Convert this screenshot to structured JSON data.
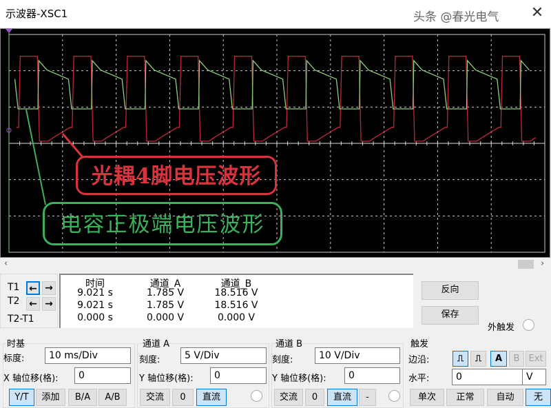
{
  "window": {
    "title": "示波器-XSC1",
    "close_icon": "close-icon"
  },
  "annotations": {
    "red_label": "光耦4脚电压波形",
    "green_label": "电容正极端电压波形",
    "red_color": "#d8343c",
    "green_color": "#3cb05a"
  },
  "chart_data": {
    "type": "line",
    "grid": true,
    "x_divisions": 10,
    "y_divisions": 6,
    "timebase": "10 ms/Div",
    "series": [
      {
        "channel": "A",
        "color": "#c0283a",
        "volts_per_div": 5,
        "period_ms": 10,
        "period_shape": [
          [
            0,
            2.2
          ],
          [
            0.3,
            12
          ],
          [
            3.5,
            12
          ],
          [
            3.9,
            0.3
          ],
          [
            5.5,
            0.3
          ],
          [
            6.5,
            0.8
          ],
          [
            9.6,
            2.2
          ],
          [
            10,
            2.2
          ]
        ]
      },
      {
        "channel": "B",
        "color": "#8fd07a",
        "volts_per_div": 10,
        "period_ms": 10,
        "period_shape": [
          [
            0,
            9.5
          ],
          [
            3.6,
            9.5
          ],
          [
            3.75,
            22.8
          ],
          [
            5.3,
            20.2
          ],
          [
            9.3,
            17.7
          ],
          [
            9.9,
            9.5
          ],
          [
            10,
            9.5
          ]
        ]
      }
    ]
  },
  "cursors": {
    "t1": "T1",
    "t2": "T2",
    "t2_t1": "T2-T1",
    "left_arrow": "arrow-left-icon",
    "right_arrow": "arrow-right-icon"
  },
  "readout": {
    "headers": [
      "时间",
      "通道_A",
      "通道_B"
    ],
    "rows": [
      [
        "9.021 s",
        "1.785 V",
        "18.516 V"
      ],
      [
        "9.021 s",
        "1.785 V",
        "18.516 V"
      ],
      [
        "0.000 s",
        "0.000 V",
        "0.000 V"
      ]
    ]
  },
  "actions": {
    "reverse": "反向",
    "save": "保存",
    "ext_trigger": "外触发"
  },
  "timebase": {
    "title": "时基",
    "scale_label": "标度:",
    "scale": "10 ms/Div",
    "xpos_label": "X 轴位移(格):",
    "xpos": "0",
    "modes": [
      "Y/T",
      "添加",
      "B/A",
      "A/B"
    ]
  },
  "channel_a": {
    "title": "通道 A",
    "scale_label": "刻度:",
    "scale": "5  V/Div",
    "ypos_label": "Y 轴位移(格):",
    "ypos": "0",
    "coupling": [
      "交流",
      "0",
      "直流"
    ]
  },
  "channel_b": {
    "title": "通道 B",
    "scale_label": "刻度:",
    "scale": "10  V/Div",
    "ypos_label": "Y 轴位移(格):",
    "ypos": "0",
    "coupling": [
      "交流",
      "0",
      "直流",
      "-"
    ]
  },
  "trigger": {
    "title": "触发",
    "edge_label": "边沿:",
    "sources": [
      "A",
      "B",
      "Ext"
    ],
    "level_label": "水平:",
    "level": "0",
    "level_unit": "V",
    "modes": [
      "单次",
      "正常",
      "自动",
      "无"
    ]
  },
  "watermark": "头条 @春光电气"
}
